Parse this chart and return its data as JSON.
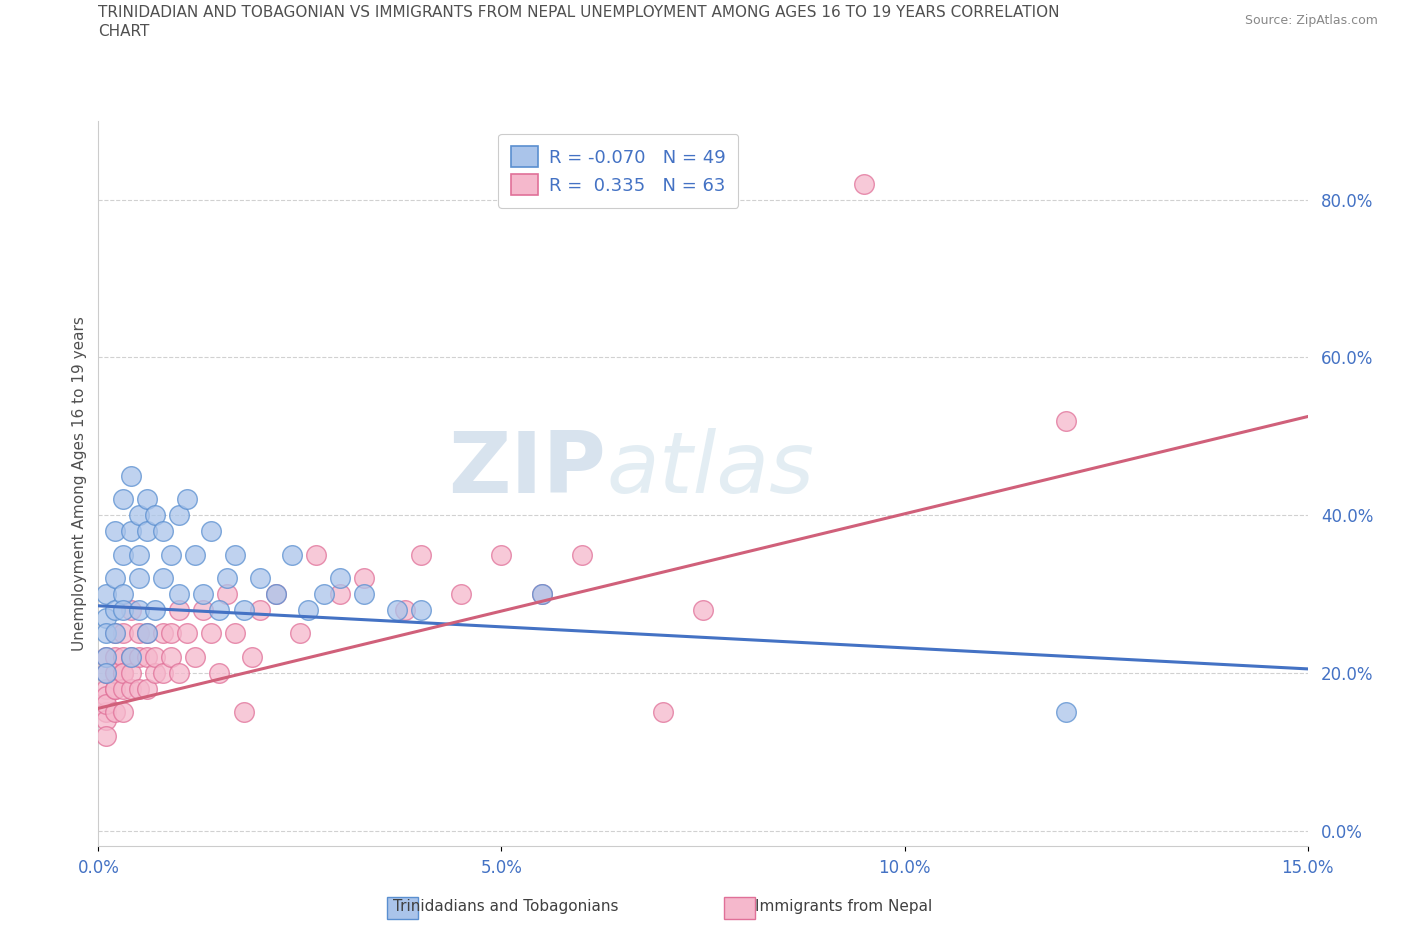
{
  "title": "TRINIDADIAN AND TOBAGONIAN VS IMMIGRANTS FROM NEPAL UNEMPLOYMENT AMONG AGES 16 TO 19 YEARS CORRELATION\nCHART",
  "source_text": "Source: ZipAtlas.com",
  "ylabel": "Unemployment Among Ages 16 to 19 years",
  "xlim": [
    0.0,
    0.15
  ],
  "ylim": [
    -0.02,
    0.9
  ],
  "yticks": [
    0.0,
    0.2,
    0.4,
    0.6,
    0.8
  ],
  "ytick_labels": [
    "0.0%",
    "20.0%",
    "40.0%",
    "60.0%",
    "80.0%"
  ],
  "xticks": [
    0.0,
    0.05,
    0.1,
    0.15
  ],
  "xtick_labels": [
    "0.0%",
    "5.0%",
    "10.0%",
    "15.0%"
  ],
  "watermark_zip": "ZIP",
  "watermark_atlas": "atlas",
  "blue_R": -0.07,
  "blue_N": 49,
  "pink_R": 0.335,
  "pink_N": 63,
  "blue_fill_color": "#aac4ea",
  "blue_edge_color": "#5a8fd0",
  "pink_fill_color": "#f5b8cc",
  "pink_edge_color": "#e07098",
  "blue_line_color": "#4472c4",
  "pink_line_color": "#d0607a",
  "legend_label_blue": "Trinidadians and Tobagonians",
  "legend_label_pink": "Immigrants from Nepal",
  "blue_scatter_x": [
    0.001,
    0.001,
    0.001,
    0.001,
    0.001,
    0.002,
    0.002,
    0.002,
    0.002,
    0.003,
    0.003,
    0.003,
    0.003,
    0.004,
    0.004,
    0.004,
    0.005,
    0.005,
    0.005,
    0.005,
    0.006,
    0.006,
    0.006,
    0.007,
    0.007,
    0.008,
    0.008,
    0.009,
    0.01,
    0.01,
    0.011,
    0.012,
    0.013,
    0.014,
    0.015,
    0.016,
    0.017,
    0.018,
    0.02,
    0.022,
    0.024,
    0.026,
    0.028,
    0.03,
    0.033,
    0.037,
    0.04,
    0.055,
    0.12
  ],
  "blue_scatter_y": [
    0.22,
    0.27,
    0.3,
    0.25,
    0.2,
    0.28,
    0.32,
    0.38,
    0.25,
    0.3,
    0.35,
    0.42,
    0.28,
    0.45,
    0.38,
    0.22,
    0.4,
    0.32,
    0.28,
    0.35,
    0.42,
    0.38,
    0.25,
    0.4,
    0.28,
    0.38,
    0.32,
    0.35,
    0.3,
    0.4,
    0.42,
    0.35,
    0.3,
    0.38,
    0.28,
    0.32,
    0.35,
    0.28,
    0.32,
    0.3,
    0.35,
    0.28,
    0.3,
    0.32,
    0.3,
    0.28,
    0.28,
    0.3,
    0.15
  ],
  "pink_scatter_x": [
    0.001,
    0.001,
    0.001,
    0.001,
    0.001,
    0.001,
    0.001,
    0.001,
    0.002,
    0.002,
    0.002,
    0.002,
    0.002,
    0.002,
    0.003,
    0.003,
    0.003,
    0.003,
    0.003,
    0.003,
    0.004,
    0.004,
    0.004,
    0.004,
    0.005,
    0.005,
    0.005,
    0.006,
    0.006,
    0.006,
    0.007,
    0.007,
    0.008,
    0.008,
    0.009,
    0.009,
    0.01,
    0.01,
    0.011,
    0.012,
    0.013,
    0.014,
    0.015,
    0.016,
    0.017,
    0.018,
    0.019,
    0.02,
    0.022,
    0.025,
    0.027,
    0.03,
    0.033,
    0.038,
    0.04,
    0.045,
    0.05,
    0.055,
    0.06,
    0.07,
    0.075,
    0.095,
    0.12
  ],
  "pink_scatter_y": [
    0.18,
    0.15,
    0.2,
    0.22,
    0.17,
    0.14,
    0.12,
    0.16,
    0.18,
    0.22,
    0.25,
    0.15,
    0.2,
    0.18,
    0.22,
    0.2,
    0.25,
    0.18,
    0.15,
    0.2,
    0.22,
    0.28,
    0.18,
    0.2,
    0.25,
    0.18,
    0.22,
    0.22,
    0.25,
    0.18,
    0.2,
    0.22,
    0.25,
    0.2,
    0.22,
    0.25,
    0.28,
    0.2,
    0.25,
    0.22,
    0.28,
    0.25,
    0.2,
    0.3,
    0.25,
    0.15,
    0.22,
    0.28,
    0.3,
    0.25,
    0.35,
    0.3,
    0.32,
    0.28,
    0.35,
    0.3,
    0.35,
    0.3,
    0.35,
    0.15,
    0.28,
    0.82,
    0.52
  ],
  "background_color": "#ffffff",
  "grid_color": "#cccccc",
  "tick_label_color": "#4472c4",
  "title_color": "#505050"
}
